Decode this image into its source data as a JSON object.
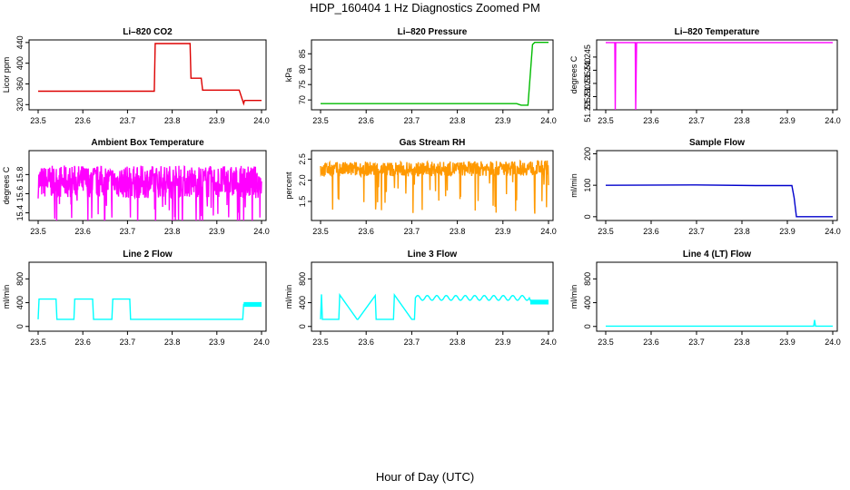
{
  "page": {
    "title": "HDP_160404  1 Hz Diagnostics Zoomed PM",
    "x_caption": "Hour of Day (UTC)"
  },
  "chart_data": [
    {
      "type": "line",
      "title": "Li–820 CO2",
      "ylabel": "Licor ppm",
      "color": "#dd0000",
      "xlim": [
        23.5,
        24.0
      ],
      "ylim": [
        310,
        445
      ],
      "xticks": [
        "23.5",
        "23.6",
        "23.7",
        "23.8",
        "23.9",
        "24.0"
      ],
      "yticks": [
        "320",
        "360",
        "400",
        "440"
      ],
      "series": [
        {
          "x": [
            23.5,
            23.76,
            23.762,
            23.84,
            23.842,
            23.865,
            23.868,
            23.95,
            23.96,
            23.962,
            24.0
          ],
          "y": [
            346,
            346,
            438,
            438,
            371,
            371,
            348,
            348,
            322,
            328,
            328
          ]
        }
      ]
    },
    {
      "type": "line",
      "title": "Li–820 Pressure",
      "ylabel": "kPa",
      "color": "#00bb00",
      "xlim": [
        23.5,
        24.0
      ],
      "ylim": [
        66.8,
        89.5
      ],
      "xticks": [
        "23.5",
        "23.6",
        "23.7",
        "23.8",
        "23.9",
        "24.0"
      ],
      "yticks": [
        "70",
        "75",
        "80",
        "85"
      ],
      "series": [
        {
          "x": [
            23.5,
            23.93,
            23.94,
            23.955,
            23.965,
            23.97,
            24.0
          ],
          "y": [
            68.8,
            68.8,
            68.3,
            68.3,
            88,
            88.7,
            88.7
          ]
        }
      ]
    },
    {
      "type": "line",
      "title": "Li–820 Temperature",
      "ylabel": "degrees C",
      "color": "#ff00ff",
      "xlim": [
        23.5,
        24.0
      ],
      "ylim": [
        51.225,
        51.2515
      ],
      "xticks": [
        "23.5",
        "23.6",
        "23.7",
        "23.8",
        "23.9",
        "24.0"
      ],
      "yticks": [
        "51.225",
        "51.230",
        "51.235",
        "51.240",
        "51.245"
      ],
      "series": [
        {
          "x": [
            23.5,
            23.52,
            23.521,
            23.522,
            23.565,
            23.566,
            23.567,
            23.568,
            24.0
          ],
          "y": [
            51.2505,
            51.2505,
            51.225,
            51.2505,
            51.2505,
            51.225,
            51.238,
            51.2505,
            51.2505
          ]
        }
      ]
    },
    {
      "type": "line",
      "title": "Ambient Box Temperature",
      "ylabel": "degrees C",
      "color": "#ff00ff",
      "xlim": [
        23.5,
        24.0
      ],
      "ylim": [
        15.32,
        16.05
      ],
      "xticks": [
        "23.5",
        "23.6",
        "23.7",
        "23.8",
        "23.9",
        "24.0"
      ],
      "yticks": [
        "15.4",
        "15.6",
        "15.8"
      ],
      "note_y_range": [
        15.38,
        15.98
      ],
      "series": [
        {
          "x": [
            23.5,
            23.6,
            23.7,
            23.8,
            23.9,
            24.0
          ],
          "y": [
            15.72,
            15.73,
            15.72,
            15.73,
            15.72,
            15.72
          ]
        }
      ]
    },
    {
      "type": "line",
      "title": "Gas Stream RH",
      "ylabel": "percent",
      "color": "#ff9900",
      "xlim": [
        23.5,
        24.0
      ],
      "ylim": [
        1.05,
        2.7
      ],
      "xticks": [
        "23.5",
        "23.6",
        "23.7",
        "23.8",
        "23.9",
        "24.0"
      ],
      "yticks": [
        "1.5",
        "2.0",
        "2.5"
      ],
      "series": [
        {
          "x": [
            23.5,
            23.6,
            23.7,
            23.8,
            23.9,
            24.0
          ],
          "y": [
            2.25,
            2.27,
            2.26,
            2.27,
            2.28,
            2.3
          ]
        }
      ]
    },
    {
      "type": "line",
      "title": "Sample Flow",
      "ylabel": "ml/min",
      "color": "#0000cc",
      "xlim": [
        23.5,
        24.0
      ],
      "ylim": [
        -12,
        210
      ],
      "xticks": [
        "23.5",
        "23.6",
        "23.7",
        "23.8",
        "23.9",
        "24.0"
      ],
      "yticks": [
        "0",
        "100",
        "200"
      ],
      "series": [
        {
          "x": [
            23.5,
            23.7,
            23.83,
            23.91,
            23.915,
            23.92,
            24.0
          ],
          "y": [
            100,
            101,
            99,
            99,
            60,
            0,
            0
          ]
        }
      ]
    },
    {
      "type": "line",
      "title": "Line 2 Flow",
      "ylabel": "ml/min",
      "color": "#00ffff",
      "xlim": [
        23.5,
        24.0
      ],
      "ylim": [
        -80,
        1080
      ],
      "xticks": [
        "23.5",
        "23.6",
        "23.7",
        "23.8",
        "23.9",
        "24.0"
      ],
      "yticks": [
        "0",
        "400",
        "800"
      ],
      "series": [
        {
          "x": [
            23.5,
            23.502,
            23.54,
            23.542,
            23.58,
            23.582,
            23.622,
            23.624,
            23.665,
            23.667,
            23.705,
            23.707,
            23.958,
            23.96,
            24.0
          ],
          "y": [
            120,
            460,
            460,
            120,
            120,
            460,
            460,
            120,
            120,
            460,
            460,
            120,
            120,
            370,
            370
          ]
        }
      ]
    },
    {
      "type": "line",
      "title": "Line 3 Flow",
      "ylabel": "ml/min",
      "color": "#00ffff",
      "xlim": [
        23.5,
        24.0
      ],
      "ylim": [
        -80,
        1080
      ],
      "xticks": [
        "23.5",
        "23.6",
        "23.7",
        "23.8",
        "23.9",
        "24.0"
      ],
      "yticks": [
        "0",
        "400",
        "800"
      ],
      "series": [
        {
          "x": [
            23.5,
            23.502,
            23.504,
            23.54,
            23.542,
            23.58,
            23.582,
            23.62,
            23.622,
            23.66,
            23.662,
            23.7,
            23.706,
            23.708,
            23.96,
            23.962,
            24.0
          ],
          "y": [
            120,
            540,
            120,
            120,
            530,
            120,
            120,
            520,
            120,
            120,
            530,
            120,
            120,
            480,
            480,
            410,
            410
          ]
        }
      ]
    },
    {
      "type": "line",
      "title": "Line 4 (LT) Flow",
      "ylabel": "ml/min",
      "color": "#00ffff",
      "xlim": [
        23.5,
        24.0
      ],
      "ylim": [
        -80,
        1080
      ],
      "xticks": [
        "23.5",
        "23.6",
        "23.7",
        "23.8",
        "23.9",
        "24.0"
      ],
      "yticks": [
        "0",
        "400",
        "800"
      ],
      "series": [
        {
          "x": [
            23.5,
            23.958,
            23.96,
            23.962,
            24.0
          ],
          "y": [
            5,
            5,
            110,
            5,
            5
          ]
        }
      ]
    }
  ]
}
